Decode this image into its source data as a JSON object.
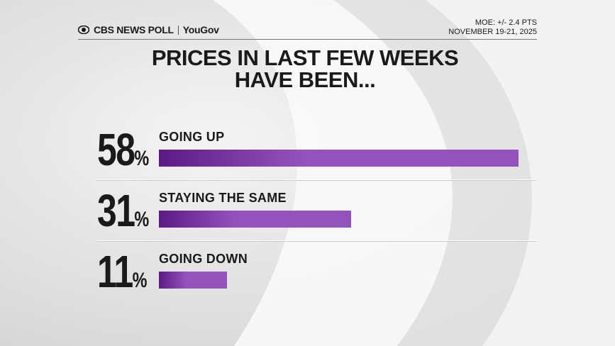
{
  "header": {
    "brand": "CBS NEWS POLL",
    "partner": "YouGov",
    "moe": "MOE: +/- 2.4 PTS",
    "dates": "NOVEMBER 19-21, 2025"
  },
  "chart_data": {
    "type": "bar",
    "orientation": "horizontal",
    "title": "PRICES IN LAST FEW WEEKS HAVE BEEN...",
    "categories": [
      "GOING UP",
      "STAYING THE SAME",
      "GOING DOWN"
    ],
    "values": [
      58,
      31,
      11
    ],
    "value_labels": [
      "58%",
      "31%",
      "11%"
    ],
    "color": "#9452bd"
  }
}
